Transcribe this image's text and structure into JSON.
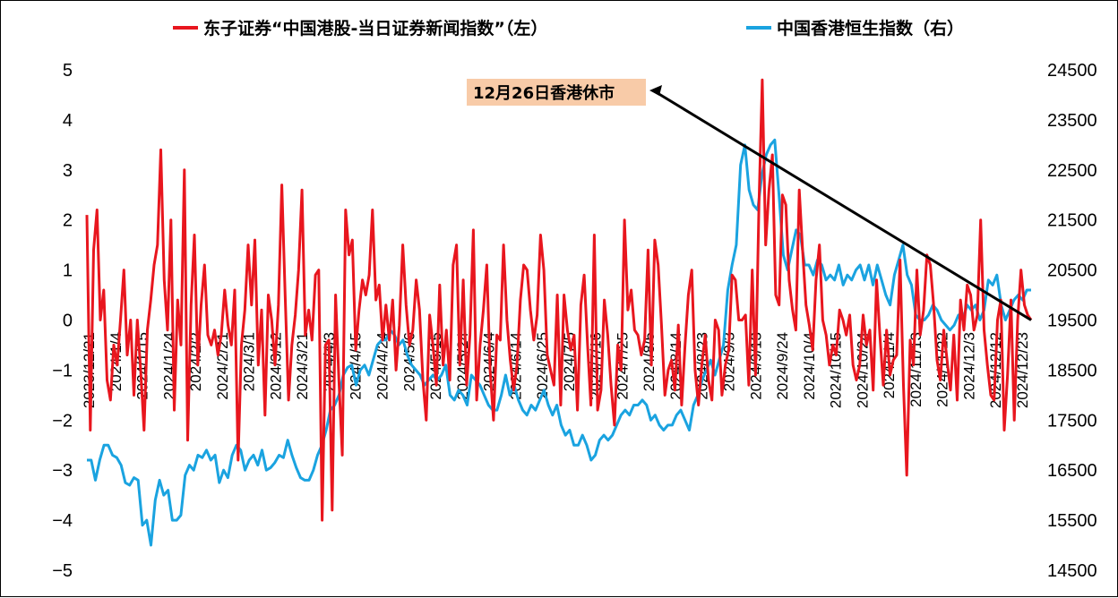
{
  "chart_data": {
    "type": "line",
    "title": "",
    "xlabel": "",
    "ylabel_left": "",
    "ylabel_right": "",
    "legend_position": "top",
    "grid": false,
    "colors": {
      "left_series": "#e8161e",
      "right_series": "#1aa3e0",
      "annotation_bg": "#f8cba8"
    },
    "ylim_left": [
      -5,
      5
    ],
    "ylim_right": [
      14500,
      24500
    ],
    "yticks_left": [
      "5",
      "4",
      "3",
      "2",
      "1",
      "0",
      "−1",
      "−2",
      "−3",
      "−4",
      "−5"
    ],
    "yticks_right": [
      "24500",
      "23500",
      "22500",
      "21500",
      "20500",
      "19500",
      "18500",
      "17500",
      "16500",
      "15500",
      "14500"
    ],
    "x_tick_labels": [
      "2023/12/21",
      "2024/1/4",
      "2024/1/15",
      "2024/1/24",
      "2024/2/2",
      "2024/2/21",
      "2024/3/1",
      "2024/3/12",
      "2024/3/21",
      "2024/4/3",
      "2024/4/15",
      "2024/4/24",
      "2024/5/6",
      "2024/5/15",
      "2024/5/24",
      "2024/6/4",
      "2024/6/14",
      "2024/6/25",
      "2024/7/5",
      "2024/7/16",
      "2024/7/25",
      "2024/8/5",
      "2024/8/14",
      "2024/8/23",
      "2024/9/3",
      "2024/9/13",
      "2024/9/24",
      "2024/10/4",
      "2024/10/15",
      "2024/10/24",
      "2024/11/4",
      "2024/11/13",
      "2024/11/22",
      "2024/12/3",
      "2024/12/12",
      "2024/12/23"
    ],
    "annotation": {
      "text": "12月26日香港休市",
      "points_to_series_end": true
    },
    "series": [
      {
        "name": "东子证券“中国港股-当日证券新闻指数”（左）",
        "axis": "left",
        "values": [
          2.1,
          -2.2,
          1.4,
          2.2,
          0.0,
          0.6,
          -1.2,
          -1.6,
          -0.5,
          -0.9,
          0.0,
          1.0,
          -0.7,
          0.0,
          -1.5,
          0.0,
          -1.0,
          -2.2,
          -0.2,
          0.4,
          1.1,
          1.5,
          3.4,
          0.8,
          -0.2,
          2.0,
          -1.8,
          0.4,
          -0.5,
          3.0,
          -2.4,
          0.3,
          1.7,
          -0.9,
          0.3,
          1.1,
          -0.3,
          -0.5,
          -0.2,
          -0.7,
          -0.3,
          0.6,
          -0.1,
          -0.5,
          0.6,
          -2.8,
          -0.5,
          0.2,
          1.5,
          0.3,
          1.6,
          -0.9,
          0.2,
          -1.9,
          0.5,
          0.0,
          -0.9,
          0.3,
          2.7,
          0.5,
          -1.6,
          -0.5,
          0.1,
          1.0,
          2.6,
          -0.3,
          0.2,
          -0.4,
          0.9,
          1.0,
          -4.0,
          -0.5,
          -0.4,
          -3.8,
          0.5,
          -1.2,
          -2.7,
          2.2,
          1.3,
          1.6,
          -0.6,
          0.2,
          0.8,
          0.5,
          0.9,
          2.2,
          0.4,
          0.7,
          -0.4,
          0.3,
          -0.4,
          0.4,
          -1.0,
          -0.1,
          1.5,
          0.3,
          -0.5,
          -0.2,
          0.8,
          0.2,
          -1.2,
          -2.0,
          0.1,
          -0.5,
          -1.3,
          0.7,
          -0.9,
          -0.2,
          -1.2,
          1.1,
          1.5,
          -0.9,
          0.8,
          -1.3,
          -0.3,
          1.8,
          -1.6,
          -0.5,
          0.2,
          1.1,
          -1.0,
          -2.0,
          -0.3,
          -0.4,
          1.5,
          0.0,
          -0.8,
          -1.4,
          -0.9,
          0.4,
          1.1,
          1.0,
          0.2,
          -0.4,
          0.1,
          1.7,
          1.0,
          -0.7,
          -1.0,
          -1.3,
          0.5,
          -1.7,
          0.5,
          -0.2,
          -0.6,
          -0.3,
          -1.8,
          0.3,
          0.9,
          -0.5,
          -1.7,
          1.7,
          -1.8,
          -1.4,
          0.4,
          -0.3,
          -1.3,
          -2.1,
          -0.5,
          -1.0,
          2.0,
          0.2,
          0.6,
          -0.2,
          -0.3,
          -0.7,
          -0.4,
          1.4,
          -0.9,
          1.6,
          1.1,
          -0.1,
          -1.5,
          -1.0,
          -0.8,
          -1.4,
          -0.1,
          -1.7,
          -0.5,
          0.5,
          1.0,
          -1.0,
          -1.7,
          -0.9,
          -0.3,
          -1.2,
          -1.6,
          0.0,
          -0.2,
          -1.5,
          -0.9,
          -0.6,
          0.9,
          0.8,
          0.0,
          0.0,
          0.1,
          -1.3,
          1.0,
          -1.1,
          2.3,
          4.8,
          1.5,
          2.6,
          3.3,
          0.5,
          0.3,
          2.5,
          2.3,
          0.8,
          0.2,
          -0.2,
          2.6,
          1.4,
          0.3,
          -0.1,
          -0.6,
          0.8,
          1.5,
          0.0,
          -0.3,
          -0.9,
          -0.5,
          -0.7,
          0.2,
          0.0,
          -0.3,
          0.1,
          -0.9,
          -1.2,
          -0.9,
          0.1,
          -0.5,
          -0.2,
          -1.4,
          0.8,
          -0.3,
          -1.3,
          -0.2,
          -1.1,
          -0.8,
          -0.7,
          1.2,
          -1.3,
          -3.1,
          -0.4,
          -0.9,
          1.0,
          -0.3,
          0.2,
          1.3,
          1.1,
          0.3,
          -0.8,
          -1.2,
          -0.2,
          -0.8,
          -1.4,
          -0.3,
          -1.6,
          0.4,
          -0.2,
          0.7,
          0.5,
          -0.2,
          0.1,
          2.0,
          -0.2,
          -0.9,
          -1.5,
          -1.6,
          0.0,
          0.4,
          -2.2,
          -1.1,
          0.4,
          -2.0,
          0.0,
          1.0,
          0.3,
          0.1,
          0.0
        ]
      },
      {
        "name": "中国香港恒生指数（右）",
        "axis": "right",
        "values": [
          16700,
          16700,
          16300,
          16700,
          17000,
          17000,
          16800,
          16750,
          16600,
          16250,
          16200,
          16350,
          16300,
          15400,
          15500,
          15000,
          15900,
          16300,
          16000,
          16100,
          15500,
          15500,
          15600,
          16400,
          16600,
          16500,
          16800,
          16750,
          16900,
          16700,
          16800,
          16250,
          16500,
          16350,
          16800,
          17000,
          16900,
          16500,
          16700,
          16800,
          16600,
          16900,
          16500,
          16550,
          16650,
          16800,
          16750,
          17100,
          16800,
          16550,
          16350,
          16300,
          16300,
          16500,
          16800,
          17000,
          17300,
          17700,
          17800,
          18000,
          18400,
          18550,
          18600,
          18200,
          18500,
          18600,
          18400,
          18700,
          19000,
          19100,
          19100,
          19300,
          19200,
          19000,
          19100,
          18800,
          18600,
          18500,
          18400,
          18200,
          18300,
          18400,
          18300,
          18400,
          18600,
          18000,
          17900,
          18100,
          18000,
          17800,
          18400,
          18300,
          18200,
          18000,
          17800,
          17700,
          17700,
          18000,
          18400,
          18000,
          18200,
          17900,
          17700,
          17600,
          17800,
          17700,
          17900,
          18100,
          17800,
          17600,
          17800,
          17400,
          17200,
          17300,
          17000,
          17000,
          17200,
          17000,
          16700,
          16800,
          17100,
          17200,
          17100,
          17200,
          17400,
          17600,
          17700,
          17600,
          17800,
          17800,
          17900,
          17800,
          17500,
          17600,
          17400,
          17300,
          17400,
          17400,
          17600,
          17700,
          17500,
          17300,
          17800,
          18000,
          18300,
          18500,
          18700,
          18400,
          18700,
          19000,
          20100,
          20600,
          21000,
          22600,
          23000,
          22100,
          21800,
          21700,
          22400,
          22800,
          23000,
          23100,
          22000,
          20800,
          20500,
          20900,
          21300,
          21200,
          20600,
          20600,
          20400,
          20700,
          20600,
          20300,
          20400,
          20300,
          20600,
          20200,
          20400,
          20300,
          20500,
          20600,
          20300,
          20600,
          20200,
          20600,
          20300,
          20000,
          19800,
          20400,
          20700,
          21000,
          20400,
          20200,
          19600,
          19500,
          19500,
          19600,
          19800,
          19700,
          19500,
          19400,
          19300,
          19400,
          19600,
          19500,
          19800,
          19700,
          19800,
          19500,
          19700,
          20300,
          20200,
          20400,
          19800,
          19500,
          19700,
          19900,
          20000,
          19900,
          20100,
          20100
        ]
      }
    ]
  }
}
